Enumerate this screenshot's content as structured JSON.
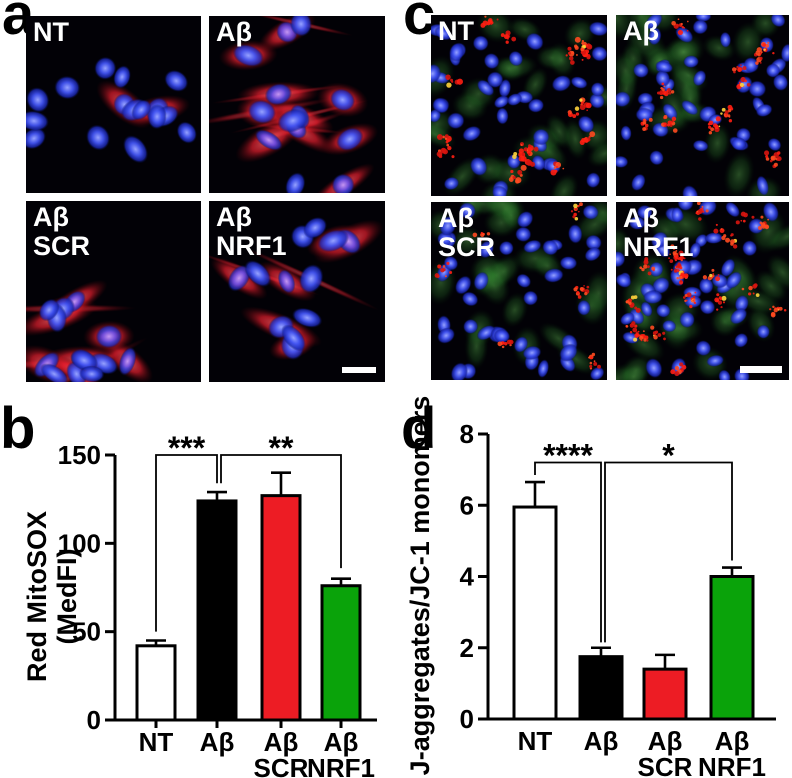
{
  "panels": {
    "a": {
      "letter": "a",
      "images": [
        {
          "lines": [
            "NT"
          ]
        },
        {
          "lines": [
            "Aβ"
          ]
        },
        {
          "lines": [
            "Aβ",
            "SCR"
          ]
        },
        {
          "lines": [
            "Aβ",
            "NRF1"
          ],
          "scalebar": true
        }
      ]
    },
    "c": {
      "letter": "c",
      "images": [
        {
          "lines": [
            "NT"
          ]
        },
        {
          "lines": [
            "Aβ"
          ]
        },
        {
          "lines": [
            "Aβ",
            "SCR"
          ]
        },
        {
          "lines": [
            "Aβ",
            "NRF1"
          ],
          "scalebar": true
        }
      ]
    },
    "b": {
      "letter": "b"
    },
    "d": {
      "letter": "d"
    }
  },
  "colors": {
    "bar_white": "#FFFFFF",
    "bar_black": "#000000",
    "bar_red": "#ED1C24",
    "bar_green": "#0AA30A",
    "axis": "#000000"
  },
  "chart_data": [
    {
      "id": "b",
      "type": "bar",
      "title": "",
      "ylabel_lines": [
        "Red MitoSOX",
        "(MedFI)"
      ],
      "categories": [
        [
          "NT"
        ],
        [
          "Aβ"
        ],
        [
          "Aβ",
          "SCR"
        ],
        [
          "Aβ",
          "NRF1"
        ]
      ],
      "values": [
        42,
        124,
        127,
        76
      ],
      "errors_plus": [
        3,
        5,
        13,
        4
      ],
      "bar_colors": [
        "#FFFFFF",
        "#000000",
        "#ED1C24",
        "#0AA30A"
      ],
      "ylim": [
        0,
        150
      ],
      "yticks": [
        "0",
        "50",
        "100",
        "150"
      ],
      "grid": false,
      "significance": [
        {
          "from": 0,
          "to": 1,
          "label": "***",
          "height": 150,
          "drop_from": 50,
          "drop_to": 134
        },
        {
          "from": 1,
          "to": 3,
          "label": "**",
          "height": 150,
          "drop_from": 134,
          "drop_to": 86
        }
      ]
    },
    {
      "id": "d",
      "type": "bar",
      "title": "",
      "ylabel_lines": [
        "J-aggregates/JC-1 monomers"
      ],
      "categories": [
        [
          "NT"
        ],
        [
          "Aβ"
        ],
        [
          "Aβ",
          "SCR"
        ],
        [
          "Aβ",
          "NRF1"
        ]
      ],
      "values": [
        5.95,
        1.75,
        1.4,
        4.0
      ],
      "errors_plus": [
        0.7,
        0.25,
        0.4,
        0.25
      ],
      "bar_colors": [
        "#FFFFFF",
        "#000000",
        "#ED1C24",
        "#0AA30A"
      ],
      "ylim": [
        0,
        8
      ],
      "yticks": [
        "0",
        "2",
        "4",
        "6",
        "8"
      ],
      "grid": false,
      "significance": [
        {
          "from": 0,
          "to": 1,
          "label": "****",
          "height": 7.2,
          "drop_from": 6.85,
          "drop_to": 2.15
        },
        {
          "from": 1,
          "to": 3,
          "label": "*",
          "height": 7.2,
          "drop_from": 2.15,
          "drop_to": 4.45
        }
      ]
    }
  ]
}
